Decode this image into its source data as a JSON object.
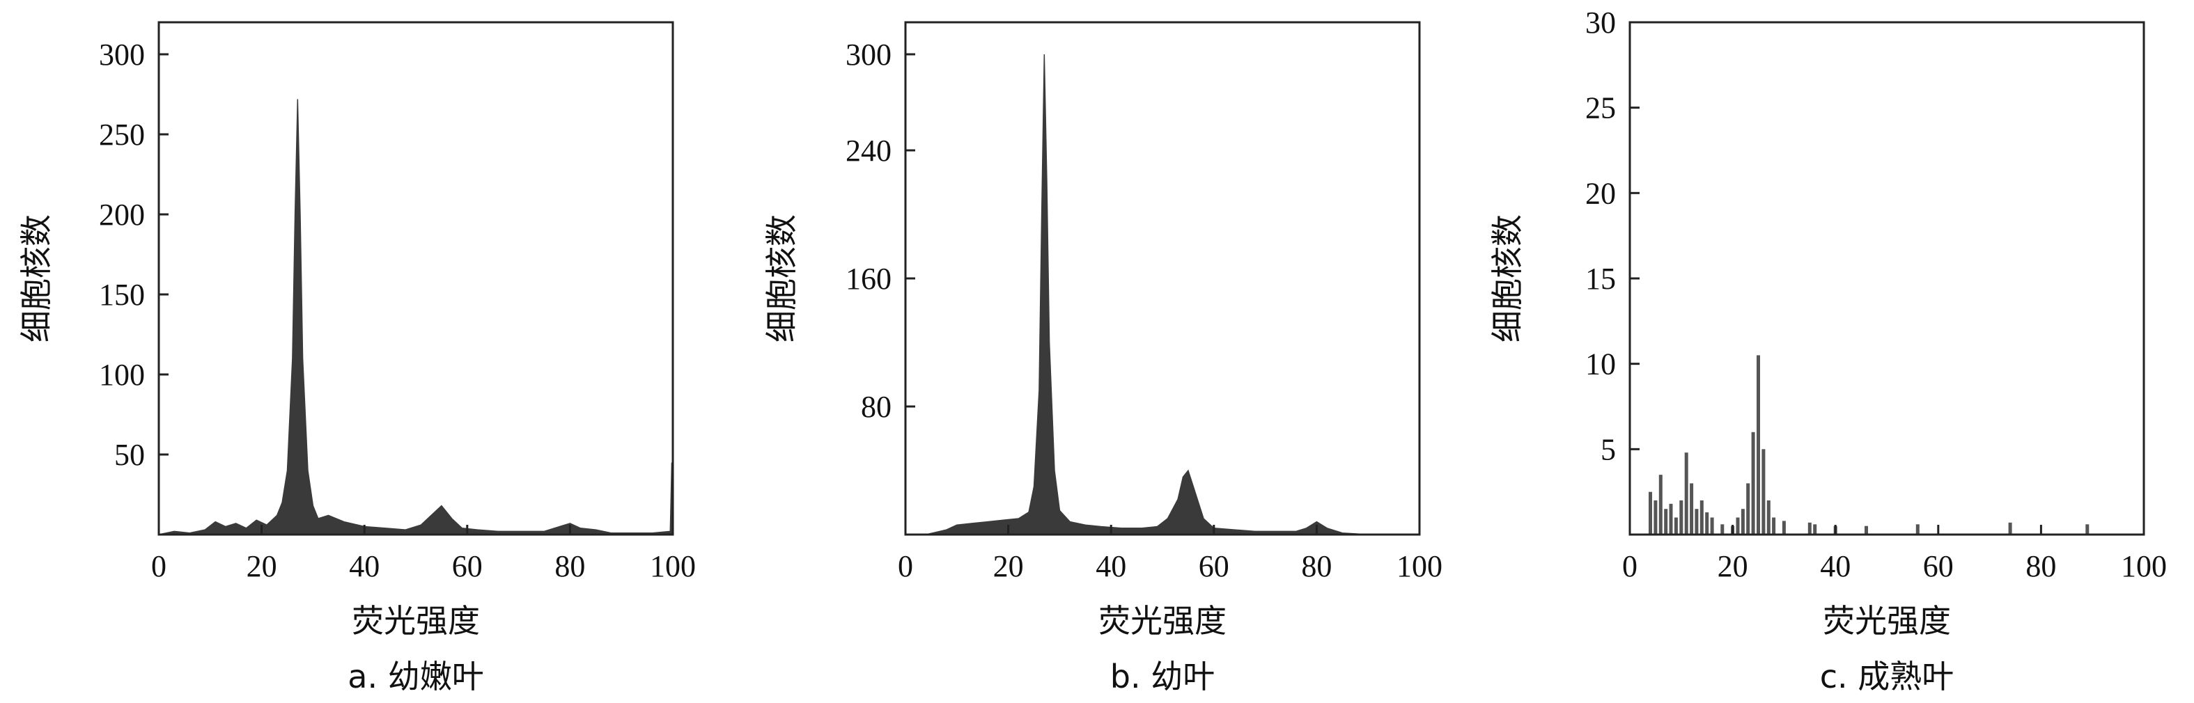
{
  "chart_data": [
    {
      "type": "area",
      "caption": "a. 幼嫩叶",
      "xlabel": "荧光强度",
      "ylabel": "细胞核数",
      "xlim": [
        0,
        100
      ],
      "ylim": [
        0,
        320
      ],
      "xticks": [
        0,
        20,
        40,
        60,
        80,
        100
      ],
      "yticks": [
        50,
        100,
        150,
        200,
        250,
        300
      ],
      "grid": false,
      "color": "#3a3a3a",
      "x": [
        0,
        3,
        6,
        9,
        11,
        13,
        15,
        17,
        19,
        21,
        23,
        24,
        25,
        26,
        26.5,
        27,
        27.5,
        28,
        29,
        30,
        31,
        33,
        36,
        40,
        44,
        48,
        51,
        53,
        55,
        57,
        59,
        62,
        66,
        70,
        75,
        78,
        80,
        82,
        85,
        88,
        92,
        96,
        99.5,
        99.8,
        100
      ],
      "y": [
        0,
        2,
        1,
        3,
        8,
        5,
        7,
        4,
        9,
        6,
        12,
        20,
        40,
        110,
        200,
        272,
        200,
        110,
        40,
        18,
        10,
        12,
        8,
        5,
        4,
        3,
        6,
        12,
        18,
        10,
        4,
        3,
        2,
        2,
        2,
        5,
        7,
        4,
        3,
        1,
        1,
        1,
        2,
        45,
        0
      ]
    },
    {
      "type": "area",
      "caption": "b. 幼叶",
      "xlabel": "荧光强度",
      "ylabel": "细胞核数",
      "xlim": [
        0,
        100
      ],
      "ylim": [
        0,
        320
      ],
      "xticks": [
        0,
        20,
        40,
        60,
        80,
        100
      ],
      "yticks": [
        80,
        160,
        240,
        300
      ],
      "grid": false,
      "color": "#3a3a3a",
      "x": [
        0,
        4,
        8,
        10,
        13,
        16,
        19,
        22,
        24,
        25,
        26,
        26.5,
        27,
        27.5,
        28,
        29,
        30,
        32,
        35,
        38,
        42,
        46,
        49,
        51,
        53,
        54,
        55,
        56,
        58,
        60,
        64,
        68,
        72,
        76,
        78,
        80,
        82,
        85,
        90,
        95,
        100
      ],
      "y": [
        0,
        0,
        3,
        6,
        7,
        8,
        9,
        10,
        14,
        30,
        90,
        200,
        300,
        220,
        120,
        40,
        15,
        8,
        6,
        5,
        4,
        4,
        5,
        10,
        22,
        36,
        40,
        30,
        10,
        4,
        3,
        2,
        2,
        2,
        4,
        8,
        4,
        1,
        0,
        0,
        0
      ]
    },
    {
      "type": "bar",
      "caption": "c. 成熟叶",
      "xlabel": "荧光强度",
      "ylabel": "细胞核数",
      "xlim": [
        0,
        100
      ],
      "ylim": [
        0,
        30
      ],
      "xticks": [
        0,
        20,
        40,
        60,
        80,
        100
      ],
      "yticks": [
        5,
        10,
        15,
        20,
        25,
        30
      ],
      "grid": false,
      "color": "#555555",
      "x": [
        4,
        5,
        6,
        7,
        8,
        9,
        10,
        11,
        12,
        13,
        14,
        15,
        16,
        18,
        20,
        21,
        22,
        23,
        24,
        25,
        26,
        27,
        28,
        30,
        35,
        36,
        40,
        46,
        56,
        74,
        89
      ],
      "y": [
        2.5,
        2,
        3.5,
        1.5,
        1.8,
        1,
        2,
        4.8,
        3,
        1.5,
        2,
        1.3,
        1,
        0.6,
        0.5,
        1,
        1.5,
        3,
        6,
        10.5,
        5,
        2,
        1,
        0.8,
        0.7,
        0.6,
        0.5,
        0.5,
        0.6,
        0.7,
        0.6
      ]
    }
  ]
}
